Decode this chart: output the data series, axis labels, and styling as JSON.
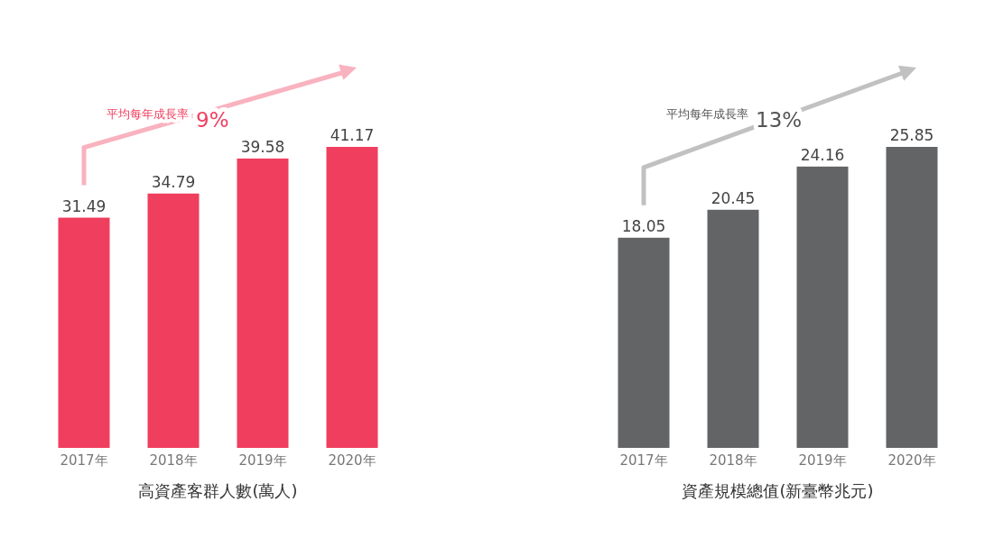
{
  "chart_data": [
    {
      "type": "bar",
      "categories": [
        "2017年",
        "2018年",
        "2019年",
        "2020年"
      ],
      "values": [
        31.49,
        34.79,
        39.58,
        41.17
      ],
      "color": "#f03e5f",
      "data_labels": true,
      "xlabel": "高資產客群人數(萬人)",
      "annotations": [
        "平均每年成長率",
        "9%"
      ]
    },
    {
      "type": "bar",
      "categories": [
        "2017年",
        "2018年",
        "2019年",
        "2020年"
      ],
      "values": [
        18.05,
        20.45,
        24.16,
        25.85
      ],
      "color": "#636466",
      "data_labels": true,
      "xlabel": "資產規模總值(新臺幣兆元)",
      "annotations": [
        "平均每年成長率",
        "13%"
      ]
    }
  ]
}
